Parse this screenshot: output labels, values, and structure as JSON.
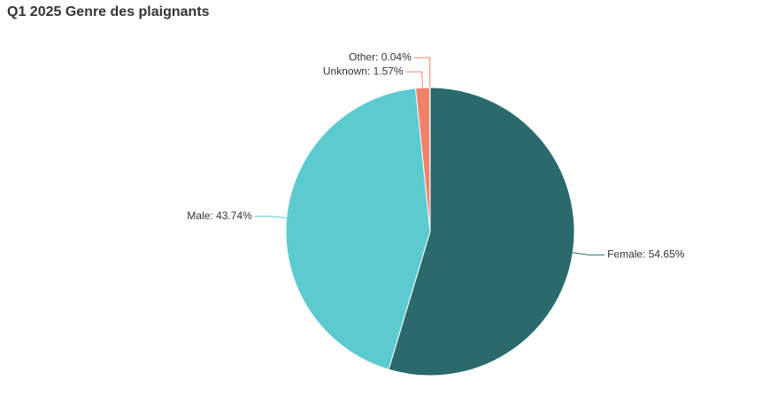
{
  "chart_data": {
    "type": "pie",
    "title": "Q1 2025 Genre des plaignants",
    "values": [
      54.65,
      43.74,
      1.57,
      0.04
    ],
    "value_labels": [
      "Female: 54.65%",
      "Male: 43.74%",
      "Unknown: 1.57%",
      "Other: 0.04%"
    ],
    "colors": [
      "#2a6a6c",
      "#5ccbd0",
      "#f0826a",
      "#f0826a"
    ]
  }
}
